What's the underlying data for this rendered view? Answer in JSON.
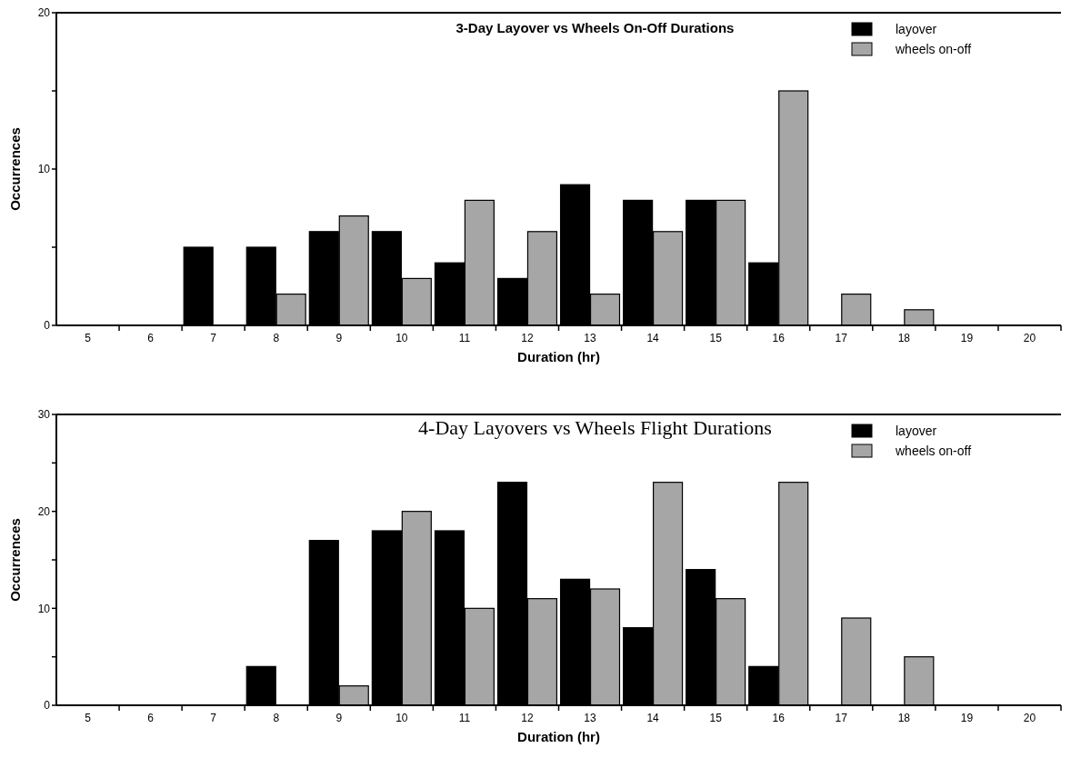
{
  "chart_data": [
    {
      "type": "bar",
      "title": "3-Day Layover vs Wheels On-Off Durations",
      "xlabel": "Duration (hr)",
      "ylabel": "Occurrences",
      "categories": [
        "5",
        "6",
        "7",
        "8",
        "9",
        "10",
        "11",
        "12",
        "13",
        "14",
        "15",
        "16",
        "17",
        "18",
        "19",
        "20"
      ],
      "series": [
        {
          "name": "layover",
          "color": "#000000",
          "values": [
            0,
            0,
            5,
            5,
            6,
            6,
            4,
            3,
            9,
            8,
            8,
            4,
            0,
            0,
            0,
            0
          ]
        },
        {
          "name": "wheels on-off",
          "color": "#a6a6a6",
          "values": [
            0,
            0,
            0,
            2,
            7,
            3,
            8,
            6,
            2,
            6,
            8,
            15,
            2,
            1,
            0,
            0
          ]
        }
      ],
      "ylim": [
        0,
        20
      ],
      "yticks": [
        0,
        {
          "value": 5,
          "label": null
        },
        10,
        {
          "value": 15,
          "label": null
        },
        20
      ],
      "legend": "top right"
    },
    {
      "type": "bar",
      "title": "4-Day Layovers vs Wheels Flight Durations",
      "xlabel": "Duration (hr)",
      "ylabel": "Occurrences",
      "categories": [
        "5",
        "6",
        "7",
        "8",
        "9",
        "10",
        "11",
        "12",
        "13",
        "14",
        "15",
        "16",
        "17",
        "18",
        "19",
        "20"
      ],
      "series": [
        {
          "name": "layover",
          "color": "#000000",
          "values": [
            0,
            0,
            0,
            4,
            17,
            18,
            18,
            23,
            13,
            8,
            14,
            4,
            0,
            0,
            0,
            0
          ]
        },
        {
          "name": "wheels on-off",
          "color": "#a6a6a6",
          "values": [
            0,
            0,
            0,
            0,
            2,
            20,
            10,
            11,
            12,
            23,
            11,
            23,
            9,
            5,
            0,
            0
          ]
        }
      ],
      "ylim": [
        0,
        30
      ],
      "yticks": [
        0,
        {
          "value": 5,
          "label": null
        },
        10,
        {
          "value": 15,
          "label": null
        },
        20,
        {
          "value": 25,
          "label": null
        },
        30
      ],
      "legend": "top right"
    }
  ]
}
